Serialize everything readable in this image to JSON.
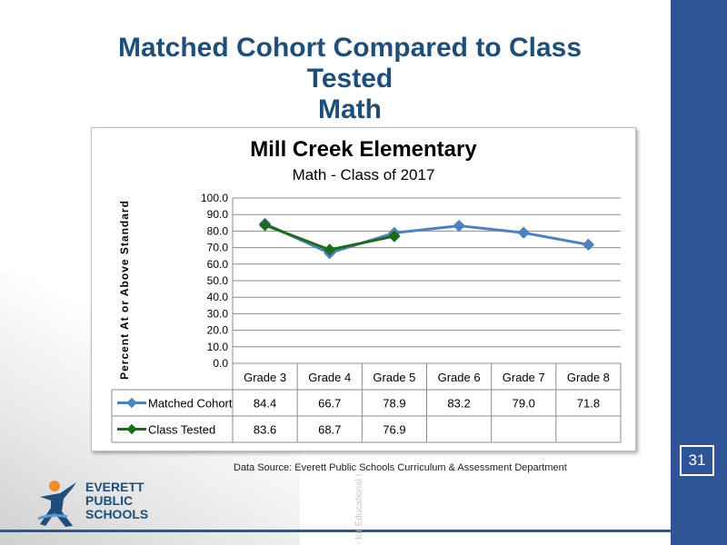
{
  "slide": {
    "title_lines": [
      "Matched Cohort Compared to Class",
      "Tested",
      "Math"
    ],
    "slide_number": "31",
    "source": "Data Source: Everett Public Schools Curriculum & Assessment Department",
    "watermark": "- for Educational I",
    "logo_lines": [
      "EVERETT",
      "PUBLIC",
      "SCHOOLS"
    ],
    "colors": {
      "bar": "#2f5597",
      "title": "#1f4e79"
    }
  },
  "chart_data": {
    "type": "line",
    "title": "Mill Creek Elementary",
    "subtitle": "Math - Class of 2017",
    "ylabel": "Percent At or Above Standard",
    "ylim": [
      0,
      100
    ],
    "yticks": [
      "0.0",
      "10.0",
      "20.0",
      "30.0",
      "40.0",
      "50.0",
      "60.0",
      "70.0",
      "80.0",
      "90.0",
      "100.0"
    ],
    "categories": [
      "Grade 3",
      "Grade 4",
      "Grade 5",
      "Grade 6",
      "Grade 7",
      "Grade 8"
    ],
    "grid": true,
    "legend": "data-table",
    "series": [
      {
        "name": "Matched Cohort",
        "values": [
          84.4,
          66.7,
          78.9,
          83.2,
          79.0,
          71.8
        ],
        "labels": [
          "84.4",
          "66.7",
          "78.9",
          "83.2",
          "79.0",
          "71.8"
        ],
        "color": "#4f81bd",
        "marker": "diamond"
      },
      {
        "name": "Class Tested",
        "values": [
          83.6,
          68.7,
          76.9,
          null,
          null,
          null
        ],
        "labels": [
          "83.6",
          "68.7",
          "76.9",
          "",
          "",
          ""
        ],
        "color": "#1e6b1e",
        "marker": "diamond"
      }
    ]
  }
}
